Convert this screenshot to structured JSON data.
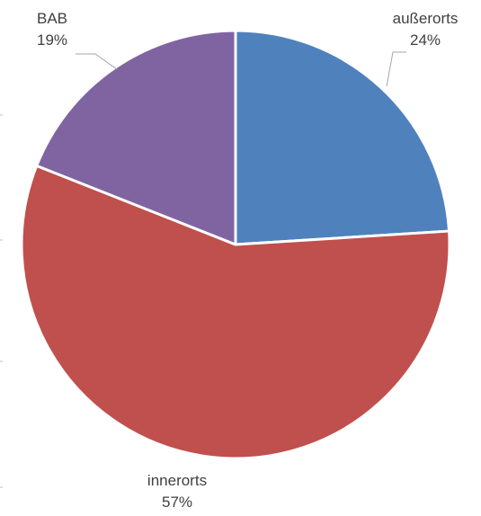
{
  "chart_data": {
    "type": "pie",
    "title": "",
    "start_angle_deg": 0,
    "direction": "clockwise",
    "legend": "none",
    "slices": [
      {
        "label": "außerorts",
        "value": 24,
        "display": "24%",
        "color": "#4f81bd"
      },
      {
        "label": "innerorts",
        "value": 57,
        "display": "57%",
        "color": "#c0504d"
      },
      {
        "label": "BAB",
        "value": 19,
        "display": "19%",
        "color": "#8064a2"
      }
    ]
  }
}
